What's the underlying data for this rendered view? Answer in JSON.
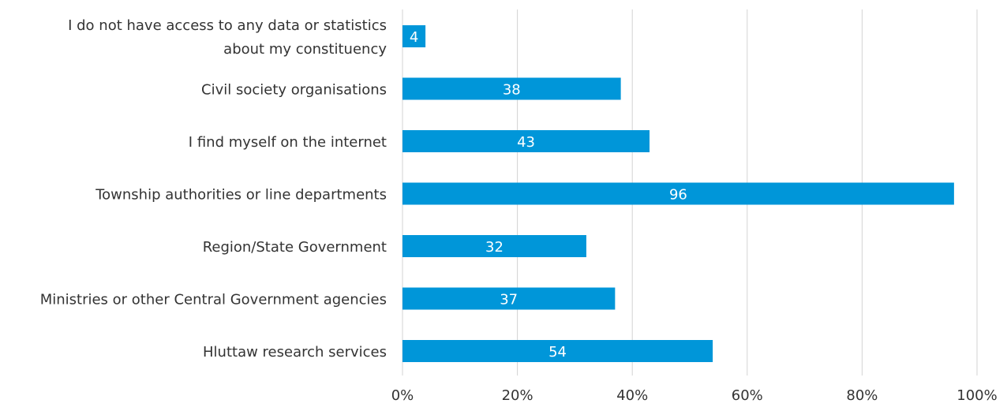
{
  "chart_data": {
    "type": "bar",
    "orientation": "horizontal",
    "categories": [
      "I do not have access to any data or statistics about my constituency",
      "Civil society organisations",
      "I find myself on the internet",
      "Township authorities or line departments",
      "Region/State Government",
      "Ministries or other Central Government agencies",
      "Hluttaw research services"
    ],
    "category_lines": [
      [
        "I do not have access to any data or statistics",
        "about my constituency"
      ],
      [
        "Civil society organisations"
      ],
      [
        "I find myself on the internet"
      ],
      [
        "Township authorities or line departments"
      ],
      [
        "Region/State Government"
      ],
      [
        "Ministries or other Central Government agencies"
      ],
      [
        "Hluttaw research services"
      ]
    ],
    "values": [
      4,
      38,
      43,
      96,
      32,
      37,
      54
    ],
    "data_labels": [
      "4",
      "38",
      "43",
      "96",
      "32",
      "37",
      "54"
    ],
    "xlim": [
      0,
      100
    ],
    "x_ticks": [
      0,
      20,
      40,
      60,
      80,
      100
    ],
    "x_tick_labels": [
      "0%",
      "20%",
      "40%",
      "60%",
      "80%",
      "100%"
    ],
    "grid": "vertical",
    "legend": "none",
    "bar_color": "#0096D9",
    "grid_color": "#D3D3D3",
    "text_color": "#333333",
    "label_color": "#FFFFFF"
  }
}
